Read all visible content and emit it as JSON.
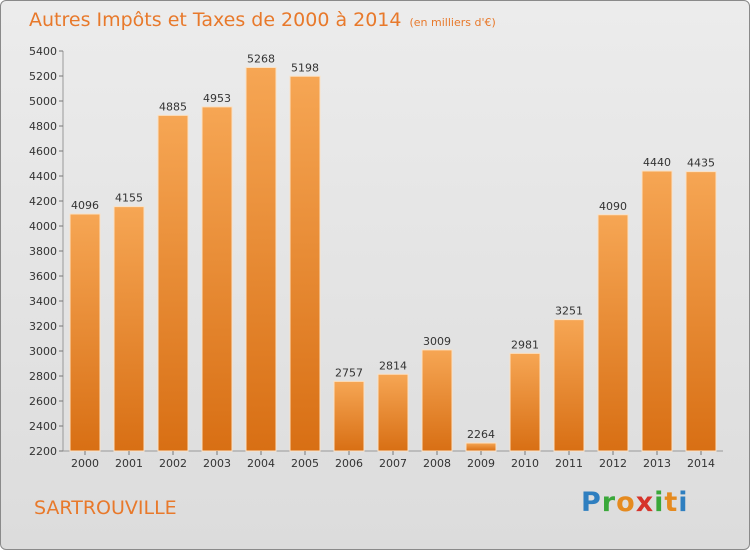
{
  "title": "Autres Impôts et Taxes de 2000 à 2014",
  "unit": "(en milliers d'€)",
  "city": "SARTROUVILLE",
  "logo": {
    "letters": [
      "P",
      "r",
      "o",
      "x",
      "i",
      "t",
      "i"
    ],
    "colors": [
      "#2f7fc0",
      "#3aa83a",
      "#e58a1f",
      "#d6342b",
      "#3aa83a",
      "#e58a1f",
      "#2f7fc0"
    ]
  },
  "colors": {
    "bar_top": "#f6a654",
    "bar_bottom": "#d86f14",
    "accent": "#e8792b"
  },
  "chart_data": {
    "type": "bar",
    "categories": [
      "2000",
      "2001",
      "2002",
      "2003",
      "2004",
      "2005",
      "2006",
      "2007",
      "2008",
      "2009",
      "2010",
      "2011",
      "2012",
      "2013",
      "2014"
    ],
    "values": [
      4096,
      4155,
      4885,
      4953,
      5268,
      5198,
      2757,
      2814,
      3009,
      2264,
      2981,
      3251,
      4090,
      4440,
      4435
    ],
    "ylim": [
      2200,
      5400
    ],
    "yticks": [
      2200,
      2400,
      2600,
      2800,
      3000,
      3200,
      3400,
      3600,
      3800,
      4000,
      4200,
      4400,
      4600,
      4800,
      5000,
      5200,
      5400
    ],
    "grid": false
  }
}
